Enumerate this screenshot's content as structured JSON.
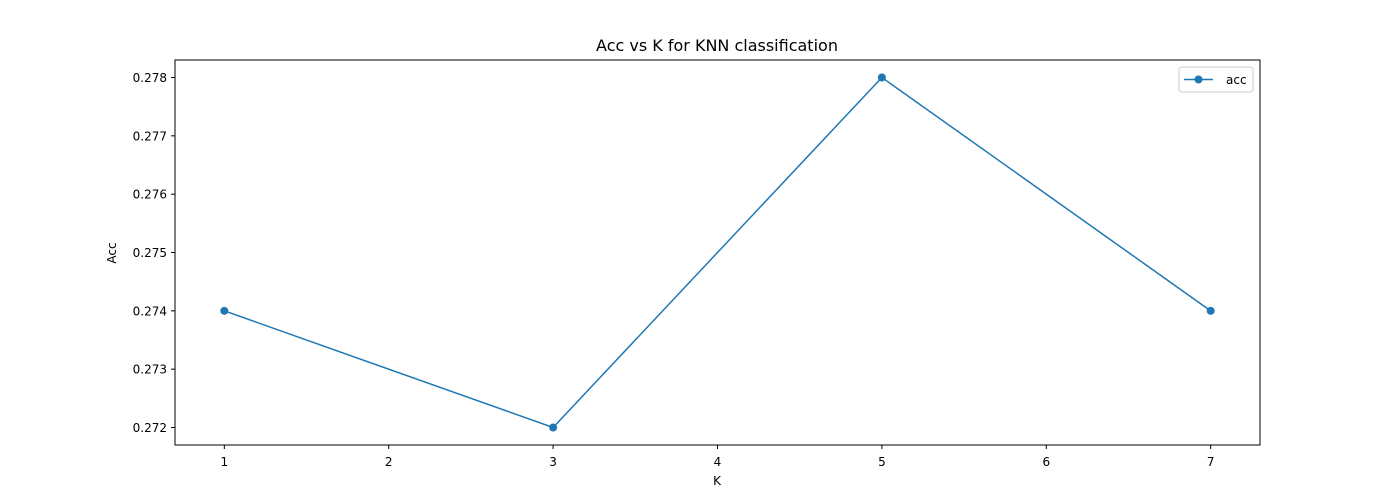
{
  "chart_data": {
    "type": "line",
    "title": "Acc vs K for KNN classification",
    "xlabel": "K",
    "ylabel": "Acc",
    "x": [
      1,
      3,
      5,
      7
    ],
    "series": [
      {
        "name": "acc",
        "values": [
          0.274,
          0.272,
          0.278,
          0.274
        ],
        "color": "#1f77b4",
        "marker": "circle"
      }
    ],
    "xticks": [
      1,
      2,
      3,
      4,
      5,
      6,
      7
    ],
    "xtick_labels": [
      "1",
      "2",
      "3",
      "4",
      "5",
      "6",
      "7"
    ],
    "yticks": [
      0.272,
      0.273,
      0.274,
      0.275,
      0.276,
      0.277,
      0.278
    ],
    "ytick_labels": [
      "0.272",
      "0.273",
      "0.274",
      "0.275",
      "0.276",
      "0.277",
      "0.278"
    ],
    "xlim": [
      0.7,
      7.3
    ],
    "ylim": [
      0.2717,
      0.2783
    ],
    "grid": false,
    "legend_position": "top-right"
  }
}
